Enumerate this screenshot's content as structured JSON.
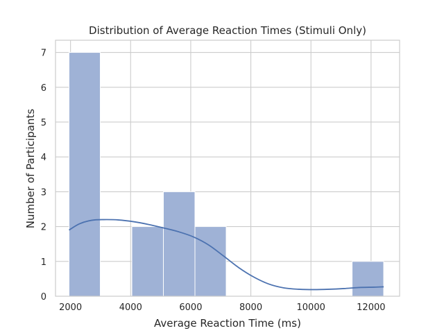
{
  "chart_data": {
    "type": "bar",
    "title": "Distribution of Average Reaction Times (Stimuli Only)",
    "xlabel": "Average Reaction Time (ms)",
    "ylabel": "Number of Participants",
    "xlim": [
      1500,
      12950
    ],
    "ylim": [
      0,
      7.35
    ],
    "x_ticks": [
      2000,
      4000,
      6000,
      8000,
      10000,
      12000
    ],
    "x_tick_labels": [
      "2000",
      "4000",
      "6000",
      "8000",
      "10000",
      "12000"
    ],
    "y_ticks": [
      0,
      1,
      2,
      3,
      4,
      5,
      6,
      7
    ],
    "y_tick_labels": [
      "0",
      "1",
      "2",
      "3",
      "4",
      "5",
      "6",
      "7"
    ],
    "grid": true,
    "bar_color": "#9fb2d6",
    "kde_color": "#4c72b0",
    "bins": [
      {
        "x0": 1950,
        "x1": 2990,
        "count": 7
      },
      {
        "x0": 2990,
        "x1": 4040,
        "count": 0
      },
      {
        "x0": 4040,
        "x1": 5090,
        "count": 2
      },
      {
        "x0": 5090,
        "x1": 6140,
        "count": 3
      },
      {
        "x0": 6140,
        "x1": 7180,
        "count": 2
      },
      {
        "x0": 7180,
        "x1": 8230,
        "count": 0
      },
      {
        "x0": 8230,
        "x1": 9280,
        "count": 0
      },
      {
        "x0": 9280,
        "x1": 10320,
        "count": 0
      },
      {
        "x0": 10320,
        "x1": 11370,
        "count": 0
      },
      {
        "x0": 11370,
        "x1": 12420,
        "count": 1
      }
    ],
    "kde": {
      "x": [
        1950,
        2300,
        2700,
        3100,
        3600,
        4100,
        4600,
        5100,
        5600,
        6100,
        6600,
        7100,
        7600,
        8100,
        8600,
        9100,
        9600,
        10100,
        10600,
        11100,
        11600,
        12100,
        12420
      ],
      "y": [
        1.9,
        2.08,
        2.18,
        2.2,
        2.19,
        2.14,
        2.06,
        1.96,
        1.85,
        1.7,
        1.47,
        1.15,
        0.82,
        0.55,
        0.35,
        0.24,
        0.2,
        0.19,
        0.2,
        0.22,
        0.25,
        0.26,
        0.27
      ]
    }
  }
}
